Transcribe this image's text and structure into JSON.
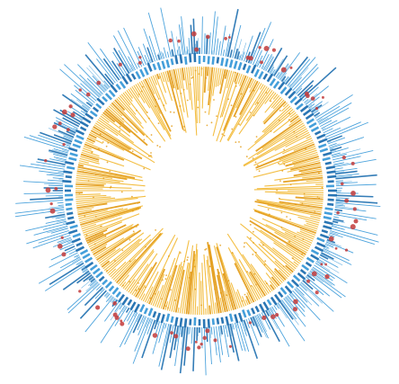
{
  "chart_data": {
    "type": "radial-bar",
    "title": "",
    "n_spokes": 360,
    "tracks": [
      {
        "name": "outer",
        "direction": "outward",
        "color": "#3a9ad9",
        "value_range": [
          0,
          1
        ]
      },
      {
        "name": "band",
        "direction": "ring",
        "color": "#2f86c8",
        "value_range": [
          0,
          1
        ]
      },
      {
        "name": "inner",
        "direction": "inward",
        "color": "#f2b830",
        "value_range": [
          0,
          1
        ]
      }
    ],
    "markers": {
      "color": "#c23b3b",
      "shape": "circle"
    },
    "grid": false,
    "legend": "none"
  },
  "colors": {
    "outer": "#3a9ad9",
    "outer_dark": "#1f6fb0",
    "inner": "#f2b830",
    "inner_dark": "#e39a12",
    "marker": "#c23b3b",
    "background": "#ffffff"
  }
}
